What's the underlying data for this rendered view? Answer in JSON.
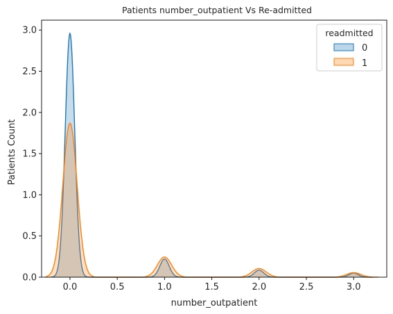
{
  "chart_data": {
    "type": "area",
    "title": "Patients number_outpatient Vs Re-admitted",
    "xlabel": "number_outpatient",
    "ylabel": "Patients Count",
    "xlim": [
      -0.3,
      3.35
    ],
    "ylim": [
      0,
      3.12
    ],
    "x_ticks": [
      0.0,
      0.5,
      1.0,
      1.5,
      2.0,
      2.5,
      3.0
    ],
    "x_tick_labels": [
      "0.0",
      "0.5",
      "1.0",
      "1.5",
      "2.0",
      "2.5",
      "3.0"
    ],
    "y_ticks": [
      0.0,
      0.5,
      1.0,
      1.5,
      2.0,
      2.5,
      3.0
    ],
    "y_tick_labels": [
      "0.0",
      "0.5",
      "1.0",
      "1.5",
      "2.0",
      "2.5",
      "3.0"
    ],
    "grid": false,
    "legend": {
      "title": "readmitted",
      "placement": "top-right"
    },
    "series": [
      {
        "name": "0",
        "color": "#1f77b4",
        "fill_color": "#1f77b4",
        "fill_opacity": 0.25,
        "x_range": [
          -0.2,
          3.2
        ],
        "peaks": [
          {
            "x": 0.0,
            "height": 2.96,
            "sd": 0.05
          },
          {
            "x": 1.0,
            "height": 0.22,
            "sd": 0.05
          },
          {
            "x": 2.0,
            "height": 0.085,
            "sd": 0.05
          },
          {
            "x": 3.0,
            "height": 0.05,
            "sd": 0.05
          }
        ]
      },
      {
        "name": "1",
        "color": "#ff7f0e",
        "fill_color": "#ff7f0e",
        "fill_opacity": 0.25,
        "x_range": [
          -0.26,
          3.26
        ],
        "peaks": [
          {
            "x": 0.0,
            "height": 1.87,
            "sd": 0.075
          },
          {
            "x": 1.0,
            "height": 0.245,
            "sd": 0.075
          },
          {
            "x": 2.0,
            "height": 0.105,
            "sd": 0.075
          },
          {
            "x": 3.0,
            "height": 0.055,
            "sd": 0.075
          }
        ]
      }
    ]
  }
}
